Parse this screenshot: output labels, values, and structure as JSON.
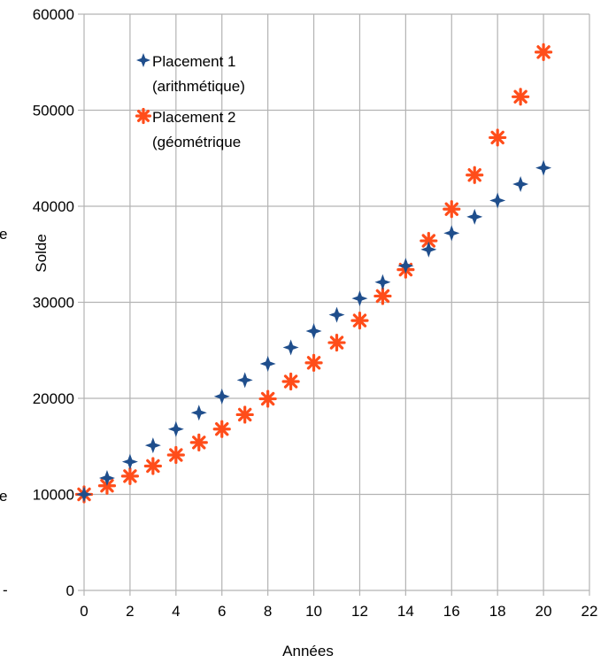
{
  "chart_data": {
    "type": "scatter",
    "title": "",
    "xlabel": "Années",
    "ylabel": "Solde",
    "xlim": [
      0,
      22
    ],
    "ylim": [
      0,
      60000
    ],
    "x_ticks": [
      "0",
      "2",
      "4",
      "6",
      "8",
      "10",
      "12",
      "14",
      "16",
      "18",
      "20",
      "22"
    ],
    "y_ticks": [
      "0",
      "10000",
      "20000",
      "30000",
      "40000",
      "50000",
      "60000"
    ],
    "grid": true,
    "legend_position": "top-left",
    "x": [
      0,
      1,
      2,
      3,
      4,
      5,
      6,
      7,
      8,
      9,
      10,
      11,
      12,
      13,
      14,
      15,
      16,
      17,
      18,
      19,
      20
    ],
    "series": [
      {
        "name_lines": [
          "Placement 1",
          "(arithmétique)"
        ],
        "marker": "cross-4",
        "color": "#1f4e8c",
        "values": [
          10000,
          11700,
          13400,
          15100,
          16800,
          18500,
          20200,
          21900,
          23600,
          25300,
          27000,
          28700,
          30400,
          32100,
          33800,
          35500,
          37200,
          38900,
          40600,
          42300,
          44000
        ]
      },
      {
        "name_lines": [
          "Placement 2",
          "(géométrique"
        ],
        "marker": "asterisk",
        "color": "#ff4d1a",
        "values": [
          10000,
          10900,
          11900,
          12950,
          14100,
          15400,
          16800,
          18300,
          19950,
          21750,
          23700,
          25800,
          28100,
          30650,
          33400,
          36400,
          39700,
          43250,
          47150,
          51400,
          56050
        ]
      }
    ],
    "left_fragments": [
      "e",
      "e",
      "-"
    ]
  }
}
